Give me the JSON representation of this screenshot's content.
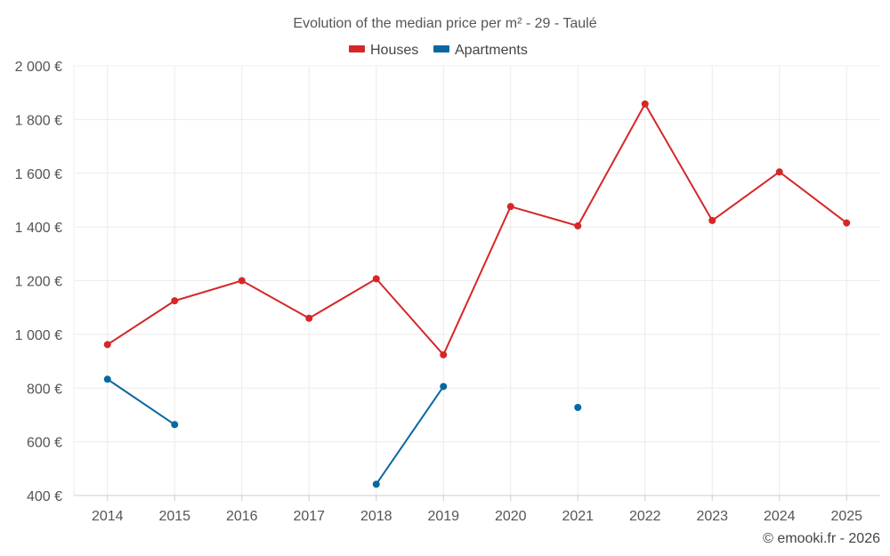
{
  "chart_data": {
    "type": "line",
    "title": "Evolution of the median price per m² - 29 - Taulé",
    "categories": [
      "2014",
      "2015",
      "2016",
      "2017",
      "2018",
      "2019",
      "2020",
      "2021",
      "2022",
      "2023",
      "2024",
      "2025"
    ],
    "ylim": [
      400,
      2000
    ],
    "yticks": [
      400,
      600,
      800,
      1000,
      1200,
      1400,
      1600,
      1800,
      2000
    ],
    "ytick_labels": [
      "400 €",
      "600 €",
      "800 €",
      "1 000 €",
      "1 200 €",
      "1 400 €",
      "1 600 €",
      "1 800 €",
      "2 000 €"
    ],
    "legend_position": "top-center",
    "grid": true,
    "series": [
      {
        "name": "Houses",
        "color": "#d62728",
        "values": [
          962,
          1125,
          1200,
          1060,
          1207,
          924,
          1476,
          1404,
          1858,
          1424,
          1605,
          1415
        ]
      },
      {
        "name": "Apartments",
        "color": "#0868a0",
        "values": [
          833,
          664,
          null,
          null,
          442,
          806,
          null,
          728,
          null,
          null,
          null,
          null
        ]
      }
    ]
  },
  "credit": "© emooki.fr - 2026"
}
